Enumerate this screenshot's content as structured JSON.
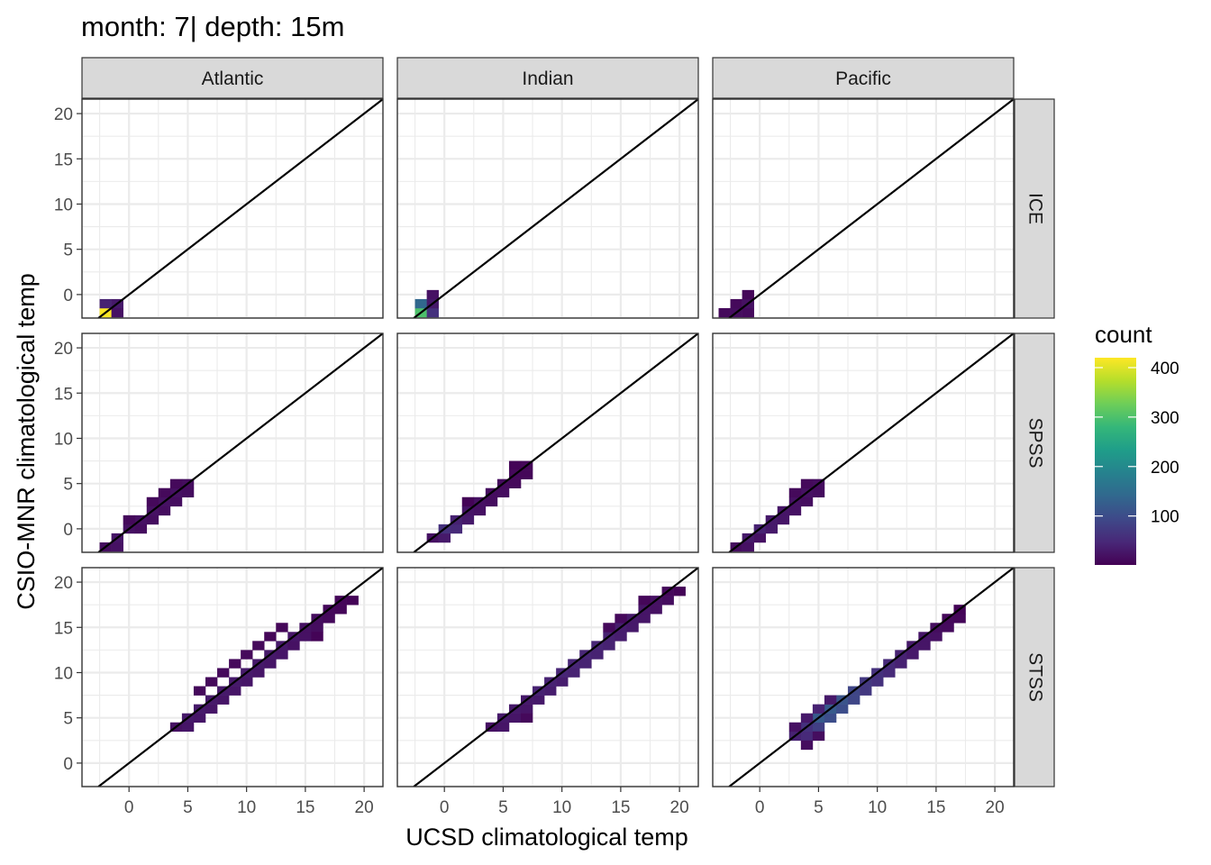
{
  "title": "month: 7| depth: 15m",
  "chart_data": {
    "type": "heatmap",
    "title": "month: 7| depth: 15m",
    "xlabel": "UCSD climatological temp",
    "ylabel": "CSIO-MNR climatological temp",
    "xlim": [
      -4,
      21.6
    ],
    "ylim": [
      -2.6,
      21.6
    ],
    "x_ticks": [
      0,
      5,
      10,
      15,
      20
    ],
    "y_ticks": [
      0,
      5,
      10,
      15,
      20
    ],
    "x_tick_labels": [
      "0",
      "5",
      "10",
      "15",
      "20"
    ],
    "y_tick_labels": [
      "0",
      "5",
      "10",
      "15",
      "20"
    ],
    "grid": true,
    "reference_line": "y = x",
    "bin_width": 1,
    "columns": [
      "Atlantic",
      "Indian",
      "Pacific"
    ],
    "rows": [
      "ICE",
      "SPSS",
      "STSS"
    ],
    "legend": {
      "title": "count",
      "position": "right",
      "min": 1,
      "max": 420,
      "ticks": [
        100,
        200,
        300,
        400
      ],
      "tick_labels": [
        "100",
        "200",
        "300",
        "400"
      ]
    },
    "colors": {
      "scale": [
        "#440154",
        "#482878",
        "#3e4989",
        "#31688e",
        "#26828e",
        "#1f9e89",
        "#35b779",
        "#6ece58",
        "#b5de2b",
        "#fde725"
      ],
      "strip_fill": "#d9d9d9",
      "panel_border": "#333333",
      "grid": "#ebebeb",
      "reference_line": "#000000"
    },
    "panels": [
      {
        "column": "Atlantic",
        "row": "ICE",
        "cells": [
          [
            -2,
            -2,
            420
          ],
          [
            -2,
            -1,
            40
          ],
          [
            -1,
            -1,
            30
          ],
          [
            -1,
            -2,
            20
          ]
        ]
      },
      {
        "column": "Indian",
        "row": "ICE",
        "cells": [
          [
            -2,
            -2,
            300
          ],
          [
            -2,
            -1,
            140
          ],
          [
            -1,
            -2,
            60
          ],
          [
            -1,
            -1,
            30
          ],
          [
            -1,
            0,
            20
          ]
        ]
      },
      {
        "column": "Pacific",
        "row": "ICE",
        "cells": [
          [
            -3,
            -2,
            10
          ],
          [
            -2,
            -2,
            15
          ],
          [
            -2,
            -1,
            10
          ],
          [
            -1,
            -2,
            12
          ],
          [
            -1,
            -1,
            20
          ],
          [
            -1,
            0,
            8
          ]
        ]
      },
      {
        "column": "Atlantic",
        "row": "SPSS",
        "cells": [
          [
            -2,
            -2,
            15
          ],
          [
            -1,
            -2,
            20
          ],
          [
            -1,
            -1,
            25
          ],
          [
            0,
            0,
            20
          ],
          [
            1,
            0,
            15
          ],
          [
            1,
            1,
            20
          ],
          [
            2,
            1,
            15
          ],
          [
            2,
            2,
            20
          ],
          [
            3,
            2,
            15
          ],
          [
            3,
            3,
            20
          ],
          [
            4,
            3,
            15
          ],
          [
            4,
            4,
            20
          ],
          [
            5,
            4,
            15
          ],
          [
            5,
            5,
            15
          ],
          [
            4,
            5,
            10
          ],
          [
            3,
            4,
            10
          ],
          [
            2,
            3,
            10
          ],
          [
            0,
            1,
            10
          ]
        ]
      },
      {
        "column": "Indian",
        "row": "SPSS",
        "cells": [
          [
            -1,
            -1,
            20
          ],
          [
            0,
            -1,
            30
          ],
          [
            0,
            0,
            60
          ],
          [
            1,
            0,
            50
          ],
          [
            1,
            1,
            40
          ],
          [
            2,
            1,
            30
          ],
          [
            2,
            2,
            25
          ],
          [
            3,
            2,
            20
          ],
          [
            3,
            3,
            20
          ],
          [
            4,
            3,
            15
          ],
          [
            4,
            4,
            15
          ],
          [
            5,
            4,
            15
          ],
          [
            5,
            5,
            12
          ],
          [
            6,
            5,
            10
          ],
          [
            6,
            6,
            10
          ],
          [
            7,
            6,
            8
          ],
          [
            7,
            7,
            8
          ],
          [
            6,
            7,
            5
          ],
          [
            2,
            3,
            5
          ]
        ]
      },
      {
        "column": "Pacific",
        "row": "SPSS",
        "cells": [
          [
            -2,
            -2,
            15
          ],
          [
            -1,
            -2,
            20
          ],
          [
            -1,
            -1,
            30
          ],
          [
            0,
            -1,
            20
          ],
          [
            0,
            0,
            40
          ],
          [
            1,
            0,
            30
          ],
          [
            1,
            1,
            30
          ],
          [
            2,
            1,
            25
          ],
          [
            2,
            2,
            25
          ],
          [
            3,
            2,
            20
          ],
          [
            3,
            3,
            20
          ],
          [
            4,
            3,
            15
          ],
          [
            4,
            4,
            20
          ],
          [
            5,
            4,
            15
          ],
          [
            5,
            5,
            15
          ],
          [
            4,
            5,
            10
          ],
          [
            3,
            4,
            10
          ]
        ]
      },
      {
        "column": "Atlantic",
        "row": "STSS",
        "cells": [
          [
            4,
            4,
            20
          ],
          [
            5,
            4,
            25
          ],
          [
            5,
            5,
            30
          ],
          [
            6,
            5,
            25
          ],
          [
            6,
            6,
            30
          ],
          [
            7,
            6,
            25
          ],
          [
            7,
            7,
            30
          ],
          [
            8,
            7,
            25
          ],
          [
            8,
            8,
            30
          ],
          [
            9,
            8,
            25
          ],
          [
            9,
            9,
            30
          ],
          [
            10,
            9,
            25
          ],
          [
            10,
            10,
            30
          ],
          [
            11,
            10,
            25
          ],
          [
            11,
            11,
            30
          ],
          [
            12,
            11,
            25
          ],
          [
            12,
            12,
            30
          ],
          [
            13,
            12,
            25
          ],
          [
            13,
            13,
            30
          ],
          [
            14,
            13,
            20
          ],
          [
            14,
            14,
            25
          ],
          [
            15,
            14,
            20
          ],
          [
            15,
            15,
            20
          ],
          [
            16,
            15,
            15
          ],
          [
            16,
            16,
            15
          ],
          [
            17,
            16,
            10
          ],
          [
            17,
            17,
            10
          ],
          [
            18,
            17,
            8
          ],
          [
            18,
            18,
            8
          ],
          [
            19,
            18,
            5
          ],
          [
            8,
            10,
            10
          ],
          [
            7,
            9,
            10
          ],
          [
            9,
            11,
            10
          ],
          [
            6,
            8,
            10
          ],
          [
            10,
            12,
            10
          ],
          [
            11,
            13,
            10
          ],
          [
            12,
            14,
            8
          ],
          [
            13,
            15,
            8
          ],
          [
            16,
            14,
            5
          ]
        ]
      },
      {
        "column": "Indian",
        "row": "STSS",
        "cells": [
          [
            4,
            4,
            20
          ],
          [
            5,
            4,
            25
          ],
          [
            5,
            5,
            30
          ],
          [
            6,
            5,
            25
          ],
          [
            6,
            6,
            30
          ],
          [
            7,
            6,
            25
          ],
          [
            7,
            7,
            30
          ],
          [
            8,
            7,
            30
          ],
          [
            8,
            8,
            40
          ],
          [
            9,
            8,
            35
          ],
          [
            9,
            9,
            40
          ],
          [
            10,
            9,
            35
          ],
          [
            10,
            10,
            45
          ],
          [
            11,
            10,
            40
          ],
          [
            11,
            11,
            45
          ],
          [
            12,
            11,
            40
          ],
          [
            12,
            12,
            45
          ],
          [
            13,
            12,
            40
          ],
          [
            13,
            13,
            45
          ],
          [
            14,
            13,
            40
          ],
          [
            14,
            14,
            40
          ],
          [
            15,
            14,
            35
          ],
          [
            15,
            15,
            35
          ],
          [
            16,
            15,
            30
          ],
          [
            16,
            16,
            30
          ],
          [
            17,
            16,
            25
          ],
          [
            17,
            17,
            25
          ],
          [
            18,
            17,
            20
          ],
          [
            18,
            18,
            20
          ],
          [
            19,
            18,
            15
          ],
          [
            19,
            19,
            10
          ],
          [
            20,
            19,
            5
          ],
          [
            7,
            5,
            10
          ],
          [
            14,
            15,
            10
          ],
          [
            15,
            16,
            10
          ],
          [
            17,
            18,
            8
          ]
        ]
      },
      {
        "column": "Pacific",
        "row": "STSS",
        "cells": [
          [
            3,
            3,
            40
          ],
          [
            4,
            3,
            50
          ],
          [
            4,
            4,
            60
          ],
          [
            5,
            4,
            80
          ],
          [
            5,
            5,
            120
          ],
          [
            6,
            5,
            100
          ],
          [
            6,
            6,
            120
          ],
          [
            7,
            6,
            100
          ],
          [
            7,
            7,
            110
          ],
          [
            8,
            7,
            90
          ],
          [
            8,
            8,
            90
          ],
          [
            9,
            8,
            70
          ],
          [
            9,
            9,
            70
          ],
          [
            10,
            9,
            60
          ],
          [
            10,
            10,
            60
          ],
          [
            11,
            10,
            50
          ],
          [
            11,
            11,
            50
          ],
          [
            12,
            11,
            40
          ],
          [
            12,
            12,
            40
          ],
          [
            13,
            12,
            30
          ],
          [
            13,
            13,
            30
          ],
          [
            14,
            13,
            25
          ],
          [
            14,
            14,
            25
          ],
          [
            15,
            14,
            20
          ],
          [
            15,
            15,
            15
          ],
          [
            16,
            15,
            12
          ],
          [
            16,
            16,
            10
          ],
          [
            17,
            16,
            8
          ],
          [
            17,
            17,
            5
          ],
          [
            5,
            6,
            40
          ],
          [
            6,
            7,
            30
          ],
          [
            4,
            5,
            30
          ],
          [
            3,
            4,
            20
          ],
          [
            4,
            2,
            15
          ],
          [
            5,
            3,
            15
          ]
        ]
      }
    ]
  }
}
